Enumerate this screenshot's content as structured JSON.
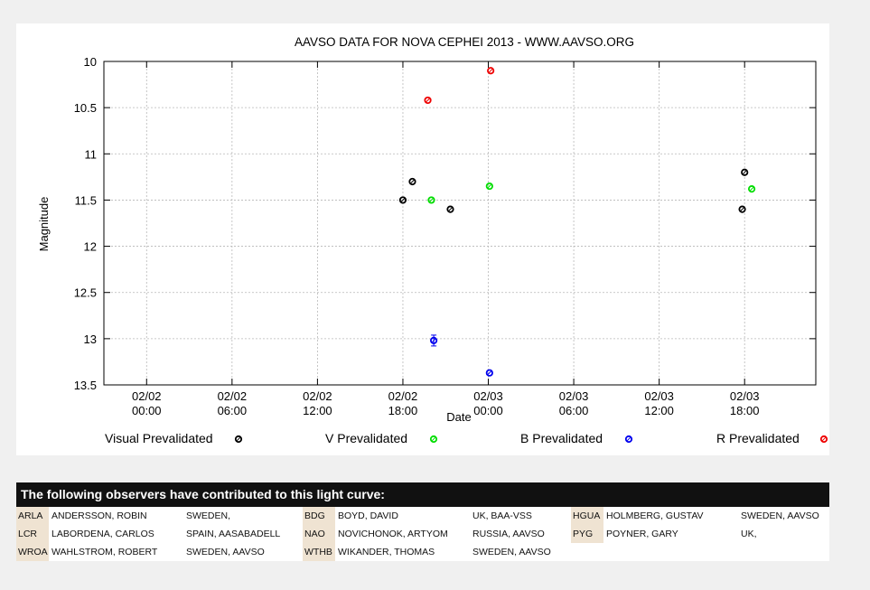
{
  "chart_data": {
    "type": "scatter",
    "title": "AAVSO DATA FOR NOVA CEPHEI 2013 - WWW.AAVSO.ORG",
    "xlabel": "Date",
    "ylabel": "Magnitude",
    "y_inverted": true,
    "ylim": [
      10,
      13.5
    ],
    "yticks": [
      "10",
      "10.5",
      "11",
      "11.5",
      "12",
      "12.5",
      "13",
      "13.5"
    ],
    "xlim": [
      "02/01 21:00",
      "02/03 23:00"
    ],
    "xticks": [
      {
        "date": "02/02",
        "time": "00:00"
      },
      {
        "date": "02/02",
        "time": "06:00"
      },
      {
        "date": "02/02",
        "time": "12:00"
      },
      {
        "date": "02/02",
        "time": "18:00"
      },
      {
        "date": "02/03",
        "time": "00:00"
      },
      {
        "date": "02/03",
        "time": "06:00"
      },
      {
        "date": "02/03",
        "time": "12:00"
      },
      {
        "date": "02/03",
        "time": "18:00"
      }
    ],
    "grid": true,
    "legend_position": "bottom",
    "series": [
      {
        "name": "Visual Prevalidated",
        "color": "#000000",
        "points": [
          [
            "02/02 18:00",
            11.5
          ],
          [
            "02/02 18:40",
            11.3
          ],
          [
            "02/02 21:20",
            11.6
          ],
          [
            "02/03 17:50",
            11.6
          ],
          [
            "02/03 18:00",
            11.2
          ]
        ]
      },
      {
        "name": "V Prevalidated",
        "color": "#00dd00",
        "points": [
          [
            "02/02 20:00",
            11.5
          ],
          [
            "02/03 00:05",
            11.35
          ],
          [
            "02/03 18:30",
            11.38
          ]
        ]
      },
      {
        "name": "B Prevalidated",
        "color": "#0000ee",
        "points": [
          [
            "02/02 20:10",
            13.02
          ],
          [
            "02/03 00:05",
            13.37
          ]
        ]
      },
      {
        "name": "R Prevalidated",
        "color": "#ee0000",
        "points": [
          [
            "02/02 19:45",
            10.42
          ],
          [
            "02/03 00:10",
            10.1
          ]
        ]
      }
    ]
  },
  "observers": {
    "header": "The following observers have contributed to this light curve:",
    "rows": [
      [
        {
          "code": "ARLA",
          "name": "ANDERSSON, ROBIN",
          "country": "SWEDEN,"
        },
        {
          "code": "BDG",
          "name": "BOYD, DAVID",
          "country": "UK, BAA-VSS"
        },
        {
          "code": "HGUA",
          "name": "HOLMBERG, GUSTAV",
          "country": "SWEDEN, AAVSO"
        }
      ],
      [
        {
          "code": "LCR",
          "name": "LABORDENA, CARLOS",
          "country": "SPAIN, AASABADELL"
        },
        {
          "code": "NAO",
          "name": "NOVICHONOK, ARTYOM",
          "country": "RUSSIA, AAVSO"
        },
        {
          "code": "PYG",
          "name": "POYNER, GARY",
          "country": "UK,"
        }
      ],
      [
        {
          "code": "WROA",
          "name": "WAHLSTROM, ROBERT",
          "country": "SWEDEN, AAVSO"
        },
        {
          "code": "WTHB",
          "name": "WIKANDER, THOMAS",
          "country": "SWEDEN, AAVSO"
        }
      ]
    ]
  }
}
